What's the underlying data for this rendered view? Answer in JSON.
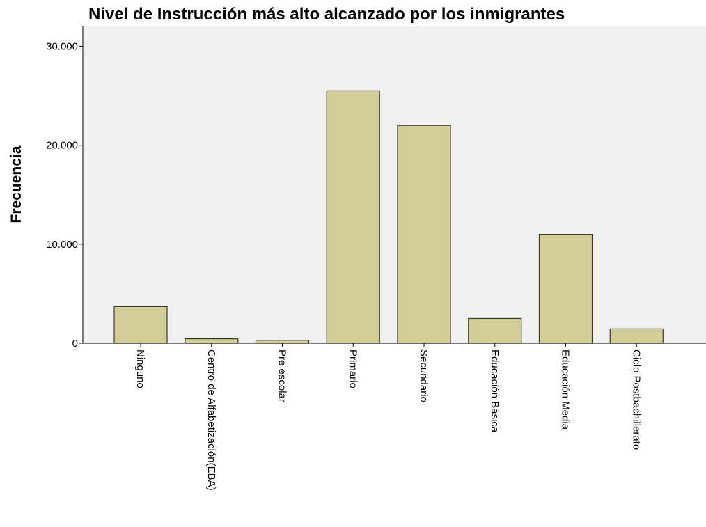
{
  "chart_data": {
    "type": "bar",
    "title": "Nivel de Instrucción más alto alcanzado por los inmigrantes",
    "xlabel": "",
    "ylabel": "Frecuencia",
    "categories": [
      "Ninguno",
      "Centro de Alfabetización(EBA)",
      "Pre escolar",
      "Primario",
      "Secundario",
      "Educación Básica",
      "Educación Media",
      "Ciclo Postbachillerato"
    ],
    "values": [
      3700,
      450,
      300,
      25500,
      22000,
      2500,
      11000,
      1450
    ],
    "ylim": [
      0,
      32000
    ],
    "yticks": [
      0,
      10000,
      20000,
      30000
    ],
    "ytick_labels": [
      "0",
      "10.000",
      "20.000",
      "30.000"
    ],
    "grid": false,
    "colors": {
      "plot_background": "#f0f0f0",
      "bar_fill": "#d3ce97",
      "bar_stroke": "#3a3a2a"
    }
  }
}
